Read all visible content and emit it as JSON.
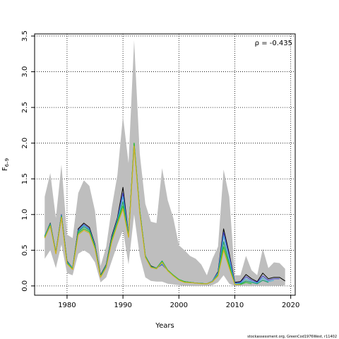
{
  "chart_data": {
    "type": "line",
    "xlabel": "Years",
    "ylabel": "F",
    "ylabel_sub": "6–9",
    "xlim": [
      1974.2,
      2020.8
    ],
    "ylim": [
      -0.13,
      3.53
    ],
    "xticks": [
      1980,
      1990,
      2000,
      2010,
      2020
    ],
    "yticks": [
      0.0,
      0.5,
      1.0,
      1.5,
      2.0,
      2.5,
      3.0,
      3.5
    ],
    "ytick_labels": [
      "0.0",
      "0.5",
      "1.0",
      "1.5",
      "2.0",
      "2.5",
      "3.0",
      "3.5"
    ],
    "grid": true,
    "annotation": "ρ = -0.435",
    "credit": "stockassessment.org, GreenCod1976West, r11402",
    "band": {
      "color": "#bebebe",
      "x": [
        1976,
        1977,
        1978,
        1979,
        1980,
        1981,
        1982,
        1983,
        1984,
        1985,
        1986,
        1987,
        1988,
        1989,
        1990,
        1991,
        1992,
        1993,
        1994,
        1995,
        1996,
        1997,
        1998,
        1999,
        2000,
        2001,
        2002,
        2003,
        2004,
        2005,
        2006,
        2007,
        2008,
        2009,
        2010,
        2011,
        2012,
        2013,
        2014,
        2015,
        2016,
        2017,
        2018,
        2019
      ],
      "upper": [
        1.25,
        1.58,
        0.95,
        1.7,
        0.72,
        0.67,
        1.3,
        1.48,
        1.4,
        1.05,
        0.28,
        0.55,
        1.1,
        1.55,
        2.38,
        1.72,
        3.44,
        1.85,
        1.15,
        0.9,
        0.88,
        1.65,
        1.2,
        0.95,
        0.57,
        0.5,
        0.42,
        0.38,
        0.3,
        0.15,
        0.38,
        0.55,
        1.63,
        1.25,
        0.15,
        0.15,
        0.42,
        0.22,
        0.15,
        0.52,
        0.25,
        0.33,
        0.32,
        0.24
      ],
      "lower": [
        0.38,
        0.5,
        0.25,
        0.58,
        0.18,
        0.15,
        0.45,
        0.5,
        0.45,
        0.33,
        0.05,
        0.12,
        0.35,
        0.58,
        0.78,
        0.3,
        1.0,
        0.42,
        0.12,
        0.07,
        0.06,
        0.06,
        0.03,
        0.02,
        0.01,
        0.0,
        0.0,
        0.0,
        0.0,
        0.0,
        0.01,
        0.05,
        0.15,
        0.03,
        0.0,
        0.0,
        0.0,
        0.0,
        0.0,
        0.0,
        0.0,
        0.0,
        0.0,
        0.01
      ]
    },
    "series": [
      {
        "color": "#000000",
        "width": 1.0,
        "x_end": 2019,
        "values": [
          0.7,
          0.88,
          0.47,
          1.0,
          0.35,
          0.25,
          0.8,
          0.88,
          0.82,
          0.58,
          0.15,
          0.3,
          0.7,
          0.95,
          1.38,
          0.72,
          1.98,
          1.05,
          0.42,
          0.28,
          0.25,
          0.3,
          0.22,
          0.15,
          0.09,
          0.06,
          0.05,
          0.04,
          0.035,
          0.03,
          0.07,
          0.2,
          0.8,
          0.45,
          0.05,
          0.06,
          0.16,
          0.1,
          0.06,
          0.18,
          0.1,
          0.12,
          0.12,
          0.07
        ]
      },
      {
        "color": "#4040d0",
        "width": 1.0,
        "x_end": 2018,
        "values": [
          0.7,
          0.87,
          0.47,
          1.0,
          0.34,
          0.25,
          0.78,
          0.86,
          0.8,
          0.57,
          0.14,
          0.29,
          0.68,
          0.93,
          1.3,
          0.72,
          1.98,
          1.05,
          0.42,
          0.27,
          0.25,
          0.3,
          0.22,
          0.15,
          0.09,
          0.06,
          0.05,
          0.04,
          0.035,
          0.03,
          0.07,
          0.19,
          0.75,
          0.42,
          0.04,
          0.05,
          0.13,
          0.08,
          0.05,
          0.14,
          0.08,
          0.1,
          0.1
        ]
      },
      {
        "color": "#40b0e0",
        "width": 1.0,
        "x_end": 2017,
        "values": [
          0.7,
          0.87,
          0.47,
          0.99,
          0.34,
          0.25,
          0.77,
          0.85,
          0.79,
          0.56,
          0.14,
          0.29,
          0.67,
          0.92,
          1.25,
          0.71,
          1.99,
          1.05,
          0.42,
          0.27,
          0.25,
          0.31,
          0.22,
          0.15,
          0.09,
          0.06,
          0.05,
          0.04,
          0.035,
          0.03,
          0.07,
          0.18,
          0.7,
          0.38,
          0.03,
          0.04,
          0.1,
          0.06,
          0.04,
          0.11,
          0.06,
          0.08
        ]
      },
      {
        "color": "#20a070",
        "width": 1.2,
        "x_end": 2016,
        "values": [
          0.69,
          0.86,
          0.46,
          0.98,
          0.33,
          0.24,
          0.76,
          0.83,
          0.78,
          0.55,
          0.13,
          0.28,
          0.66,
          0.9,
          1.18,
          0.7,
          2.0,
          1.05,
          0.42,
          0.27,
          0.25,
          0.35,
          0.22,
          0.15,
          0.09,
          0.06,
          0.05,
          0.04,
          0.035,
          0.03,
          0.06,
          0.16,
          0.62,
          0.32,
          0.02,
          0.03,
          0.07,
          0.05,
          0.03,
          0.08,
          0.05
        ]
      },
      {
        "color": "#30c030",
        "width": 1.2,
        "x_end": 2013,
        "values": [
          0.68,
          0.85,
          0.46,
          0.97,
          0.32,
          0.24,
          0.74,
          0.8,
          0.76,
          0.54,
          0.13,
          0.27,
          0.64,
          0.88,
          1.12,
          0.69,
          2.0,
          1.04,
          0.41,
          0.26,
          0.24,
          0.34,
          0.22,
          0.15,
          0.09,
          0.06,
          0.05,
          0.04,
          0.035,
          0.03,
          0.06,
          0.15,
          0.55,
          0.28,
          0.02,
          0.02,
          0.05,
          0.03
        ]
      },
      {
        "color": "#d4b020",
        "width": 1.2,
        "x_end": 2011,
        "values": [
          0.67,
          0.84,
          0.45,
          0.96,
          0.31,
          0.23,
          0.72,
          0.78,
          0.74,
          0.52,
          0.12,
          0.26,
          0.62,
          0.86,
          1.08,
          0.68,
          1.96,
          1.02,
          0.4,
          0.26,
          0.24,
          0.33,
          0.21,
          0.14,
          0.08,
          0.05,
          0.045,
          0.04,
          0.03,
          0.03,
          0.06,
          0.14,
          0.5,
          0.25,
          0.02,
          0.02
        ]
      }
    ]
  }
}
